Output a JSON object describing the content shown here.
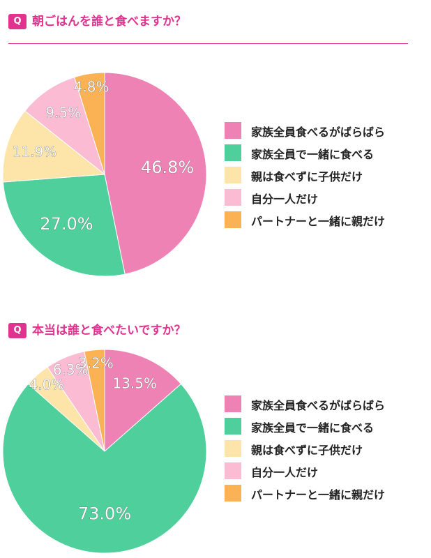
{
  "accent_color": "#e0338f",
  "questions": [
    {
      "badge": "Q",
      "title": "朝ごはんを誰と食べますか？"
    },
    {
      "badge": "Q",
      "title": "本当は誰と食べたいですか？"
    }
  ],
  "chart_data": [
    {
      "type": "pie",
      "title": "朝ごはんを誰と食べますか？",
      "categories": [
        "家族全員食べるがばらばら",
        "家族全員で一緒に食べる",
        "親は食べずに子供だけ",
        "自分一人だけ",
        "パートナーと一緒に親だけ"
      ],
      "values": [
        46.8,
        27.0,
        11.9,
        9.5,
        4.8
      ],
      "value_labels": [
        "46.8%",
        "27.0%",
        "11.9%",
        "9.5%",
        "4.8%"
      ],
      "colors": [
        "#ee82b4",
        "#4fcf9b",
        "#fde4a9",
        "#fbbcd3",
        "#fbb255"
      ],
      "legend_position": "right"
    },
    {
      "type": "pie",
      "title": "本当は誰と食べたいですか？",
      "categories": [
        "家族全員食べるがばらばら",
        "家族全員で一緒に食べる",
        "親は食べずに子供だけ",
        "自分一人だけ",
        "パートナーと一緒に親だけ"
      ],
      "values": [
        13.5,
        73.0,
        4.0,
        6.3,
        3.2
      ],
      "value_labels": [
        "13.5%",
        "73.0%",
        "4.0%",
        "6.3%",
        "3.2%"
      ],
      "colors": [
        "#ee82b4",
        "#4fcf9b",
        "#fde4a9",
        "#fbbcd3",
        "#fbb255"
      ],
      "legend_position": "right"
    }
  ]
}
